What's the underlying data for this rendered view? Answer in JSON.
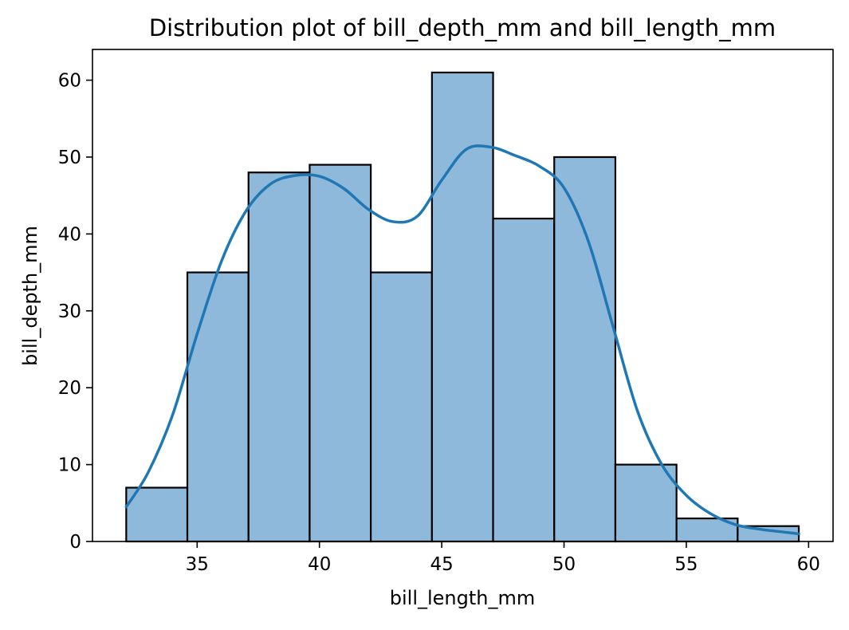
{
  "chart_data": {
    "type": "bar",
    "title": "Distribution plot of bill_depth_mm and bill_length_mm",
    "xlabel": "bill_length_mm",
    "ylabel": "bill_depth_mm",
    "xlim": [
      30.72,
      61.0
    ],
    "ylim": [
      0,
      64
    ],
    "x_ticks": [
      35,
      40,
      45,
      50,
      55,
      60
    ],
    "y_ticks": [
      0,
      10,
      20,
      30,
      40,
      50,
      60
    ],
    "bins": [
      {
        "x0": 32.1,
        "x1": 34.6,
        "count": 7
      },
      {
        "x0": 34.6,
        "x1": 37.1,
        "count": 35
      },
      {
        "x0": 37.1,
        "x1": 39.6,
        "count": 48
      },
      {
        "x0": 39.6,
        "x1": 42.1,
        "count": 49
      },
      {
        "x0": 42.1,
        "x1": 44.6,
        "count": 35
      },
      {
        "x0": 44.6,
        "x1": 47.1,
        "count": 61
      },
      {
        "x0": 47.1,
        "x1": 49.6,
        "count": 42
      },
      {
        "x0": 49.6,
        "x1": 52.1,
        "count": 50
      },
      {
        "x0": 52.1,
        "x1": 54.6,
        "count": 10
      },
      {
        "x0": 54.6,
        "x1": 57.1,
        "count": 3
      },
      {
        "x0": 57.1,
        "x1": 59.6,
        "count": 2
      }
    ],
    "kde": {
      "x": [
        32.1,
        33.0,
        34.0,
        35.0,
        36.0,
        37.0,
        38.0,
        39.0,
        40.0,
        41.0,
        42.0,
        43.0,
        44.0,
        45.0,
        46.0,
        47.0,
        48.0,
        49.0,
        50.0,
        51.0,
        52.0,
        53.0,
        54.0,
        55.0,
        56.0,
        57.0,
        58.0,
        59.6
      ],
      "y": [
        4.5,
        9.0,
        16.5,
        27.0,
        36.5,
        43.0,
        46.5,
        47.6,
        47.5,
        45.9,
        43.2,
        41.6,
        42.3,
        47.0,
        51.0,
        51.3,
        50.2,
        48.8,
        46.0,
        39.0,
        28.0,
        17.0,
        10.0,
        6.0,
        3.6,
        2.2,
        1.6,
        1.0
      ]
    },
    "grid": false,
    "legend": "none",
    "colors": {
      "bar_fill": "#8fb9da",
      "bar_edge": "#000000",
      "kde_line": "#1f77b4"
    }
  }
}
